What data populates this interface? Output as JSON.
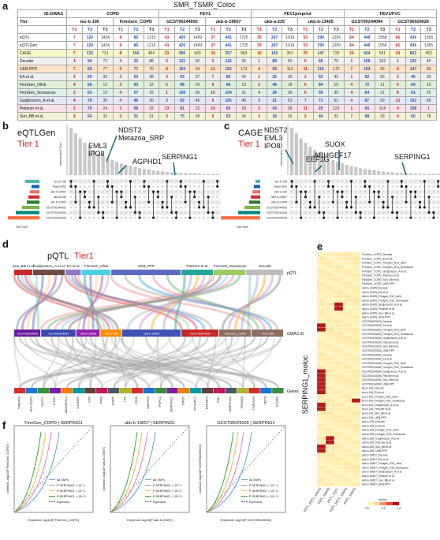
{
  "panel_a": {
    "letter": "a",
    "title": "SMR_TSMR_Coloc",
    "corner_id": "ID.GWAS",
    "corner_tier": "Tier",
    "groups": [
      "COPD",
      "FEV1",
      "FEV1prepred",
      "FEV1/FVC"
    ],
    "ids": [
      "ieu-b-106",
      "FinnGen_COPD",
      "GCST90244092",
      "ukb-b-19657",
      "ukb-a-235",
      "ukb-b-13405",
      "GCST90244094",
      "GCST90029026"
    ],
    "tiers": [
      "T1",
      "T2",
      "T3"
    ],
    "rows": [
      {
        "name": "eQTL",
        "values": [
          "7",
          "120",
          "1424",
          "8",
          "85",
          "1215",
          "43",
          "420",
          "1499",
          "37",
          "441",
          "1725",
          "35",
          "267",
          "1019",
          "53",
          "290",
          "1299",
          "94",
          "449",
          "1558",
          "66",
          "439",
          "1365"
        ]
      },
      {
        "name": "eQTLGen",
        "values": [
          "7",
          "129",
          "1424",
          "8",
          "85",
          "1215",
          "43",
          "420",
          "1499",
          "37",
          "441",
          "1725",
          "35",
          "267",
          "1019",
          "53",
          "290",
          "1299",
          "94",
          "449",
          "1558",
          "66",
          "439",
          "1365"
        ]
      },
      {
        "name": "CAGE",
        "values": [
          "7",
          "133",
          "731",
          "8",
          "150",
          "484",
          "33",
          "300",
          "683",
          "34",
          "357",
          "963",
          "16",
          "143",
          "352",
          "25",
          "147",
          "729",
          "34",
          "664",
          "591",
          "34",
          "602",
          "452"
        ]
      },
      {
        "name": "Decode",
        "values": [
          "1",
          "94",
          "72",
          "4",
          "32",
          "88",
          "5",
          "121",
          "90",
          "2",
          "118",
          "96",
          "1",
          "89",
          "50",
          "6",
          "65",
          "75",
          "1",
          "106",
          "102",
          "1",
          "130",
          "45"
        ]
      },
      {
        "name": "UKB-PPP",
        "values": [
          "7",
          "69",
          "77",
          "6",
          "77",
          "70",
          "8",
          "154",
          "94",
          "11",
          "162",
          "173",
          "4",
          "59",
          "113",
          "11",
          "116",
          "172",
          "7",
          "154",
          "96",
          "8",
          "147",
          "80"
        ]
      },
      {
        "name": "EA et al.",
        "values": [
          "3",
          "65",
          "32",
          "2",
          "53",
          "38",
          "3",
          "63",
          "37",
          "7",
          "96",
          "42",
          "1",
          "25",
          "36",
          "2",
          "52",
          "42",
          "1",
          "62",
          "55",
          "2",
          "46",
          "39"
        ]
      },
      {
        "name": "FinnGen_Olink",
        "values": [
          "4",
          "66",
          "12",
          "2",
          "93",
          "12",
          "5",
          "98",
          "20",
          "6",
          "98",
          "13",
          "2",
          "48",
          "18",
          "6",
          "84",
          "10",
          "4",
          "72",
          "11",
          "6",
          "69",
          "10"
        ]
      },
      {
        "name": "FinnGen_Somascan",
        "values": [
          "2",
          "63",
          "12",
          "4",
          "57",
          "15",
          "1",
          "100",
          "30",
          "10",
          "104",
          "31",
          "4",
          "28",
          "36",
          "6",
          "59",
          "35",
          "4",
          "64",
          "21",
          "8",
          "61",
          "25"
        ]
      },
      {
        "name": "Gudjonsson_A et al.",
        "values": [
          "4",
          "70",
          "35",
          "4",
          "46",
          "30",
          "3",
          "92",
          "46",
          "6",
          "105",
          "40",
          "3",
          "31",
          "53",
          "7",
          "71",
          "52",
          "4",
          "67",
          "59",
          "13",
          "102",
          "28"
        ]
      },
      {
        "name": "Pietzner et al.",
        "values": [
          "3",
          "70",
          "24",
          "1",
          "58",
          "32",
          "13",
          "81",
          "22",
          "14",
          "65",
          "18",
          "2",
          "43",
          "28",
          "11",
          "25",
          "123",
          "1",
          "65",
          "114",
          "4",
          "108",
          "1"
        ]
      },
      {
        "name": "Sun_BB et al.",
        "values": [
          "3",
          "54",
          "31",
          "2",
          "31",
          "21",
          "3",
          "75",
          "38",
          "5",
          "53",
          "34",
          "3",
          "18",
          "26",
          "2",
          "44",
          "22",
          "7",
          "68",
          "33",
          "4",
          "60",
          "78"
        ]
      }
    ],
    "row_colors": [
      "#ffffff",
      "#ffffff",
      "#f7f7c8",
      "#f0f0f0",
      "#fde4c8",
      "#eeeeee",
      "#dff0d8",
      "#dff0e8",
      "#e0e8f8",
      "#f8e0ea",
      "#f3f0d8"
    ]
  },
  "panel_b": {
    "letter": "b",
    "title": "eQTLGen",
    "tier": "Tier 1",
    "genes1": "NDST2",
    "genes2": "Metazoa_SRP",
    "genes3": "EML3",
    "genes4": "IPO8",
    "genes5": "AGPHD1",
    "genes6": "SERPING1",
    "ylabel": "Intersection Size",
    "xlabel": "Set Size",
    "sets": [
      "ieu-b-106",
      "FinnCOPD",
      "ukb-b-19657",
      "ukb-a-235",
      "ukb-b-13405",
      "GCST90244092",
      "GCST90244094",
      "GCST90029026"
    ],
    "setcolors": [
      "#4db6ac",
      "#1565c0",
      "#e57373",
      "#d32f2f",
      "#2e7d32",
      "#7cb342",
      "#00897b",
      "#ff7043"
    ]
  },
  "panel_c": {
    "letter": "c",
    "title": "CAGE",
    "tier": "Tier 1",
    "genes1": "NDST2",
    "genes2": "EML3",
    "genes3": "IPO8",
    "genes4": "EEF1G",
    "genes5": "SUOX",
    "genes6": "ARHGEF17",
    "genes7": "SERPING1",
    "ylabel": "Intersection Size",
    "xlabel": "Set Size",
    "sets": [
      "ieu-b-106",
      "FinnCOPD",
      "ukb-a-235",
      "ukb-b-19657",
      "ukb-b-13405",
      "GCST90244092",
      "GCST90244094",
      "GCST90029026"
    ]
  },
  "panel_d": {
    "letter": "d",
    "title": "pQTL",
    "tier": "Tier1",
    "top_labels": [
      "Sun_BB et al.",
      "Gudjonsson_A et al.",
      "EA et al.",
      "FinnGen_Olink",
      "UKB_PPP",
      "Pietzner et al.",
      "FinnGen_Somascan",
      "Decode"
    ],
    "top_colors": [
      "#c62828",
      "#6d4c41",
      "#8e7cc3",
      "#4dd0e1",
      "#5c6bc0",
      "#26a69a",
      "#9ccc65",
      "#bdbdbd"
    ],
    "mid_labels": [
      "GCST90029026",
      "GCST90244094",
      "ukb-b-13405",
      "ukb-a-235",
      "ukb-b-19657",
      "GCST90244092",
      "FinnGen_COPD",
      "ieu-b-106"
    ],
    "mid_colors": [
      "#6a1b9a",
      "#3949ab",
      "#8e24aa",
      "#fb8c00",
      "#3f51b5",
      "#c62828",
      "#8d6e63",
      "#8d6e63"
    ],
    "right_top": "pQTL",
    "right_mid": "GWAS.ID",
    "right_bot": "Genes",
    "genes": [
      "TMEM43",
      "HLA-DQA2",
      "NDST2",
      "IL1RN",
      "ADAMTSL1",
      "IL12RB2",
      "CA6",
      "PPIB",
      "AGER",
      "LTA",
      "ITIH5",
      "MAP2K5",
      "PSPC1",
      "SERPING1",
      "CRCP",
      "RTN4RL1",
      "EFEMP1",
      "NSE",
      "SERPINA1",
      "PRSS53",
      "TSPAN33",
      "MICB",
      "IL13RA"
    ]
  },
  "panel_e": {
    "letter": "e",
    "title": "SERPING1_moloc",
    "rows": [
      "FinnGen_COPD_Decode",
      "FinnGen_COPD_EA et al.",
      "FinnGen_COPD_Finngen_R10_olink",
      "FinnGen_COPD_Finngen_R10_Somascan",
      "FinnGen_COPD_Gudjonsson_A et al.",
      "FinnGen_COPD_Pietzner et al.",
      "FinnGen_COPD_Sun_BB et al.",
      "FinnGen_COPD_UKB-PPP",
      "ukb-b-13405_Decode",
      "ukb-b-13405_EA et al.",
      "ukb-b-13405_Finngen_R10_olink",
      "ukb-b-13405_Finngen_R10_Somascan",
      "ukb-b-13405_Gudjonsson_A et al.",
      "ukb-b-13405_Pietzner et al.",
      "ukb-b-13405_Sun_BB et al.",
      "ukb-b-13405_UKB-PPP",
      "GCST90029026_Decode",
      "GCST90029026_EA et al.",
      "GCST90029026_Finngen_R10_olink",
      "GCST90029026_Finngen_R10_Somascan",
      "GCST90029026_Gudjonsson_A et al.",
      "GCST90029026_Pietzner et al.",
      "GCST90029026_Sun_BB et al.",
      "GCST90029026_UKB-PPP",
      "GCST90244094_Decode",
      "GCST90244094_EA et al.",
      "GCST90244094_Finngen_R10_olink",
      "GCST90244094_Finngen_R10_Somascan",
      "GCST90244094_Gudjonsson_A et al.",
      "GCST90244094_Pietzner et al.",
      "GCST90244094_Sun_BB et al.",
      "GCST90244094_UKB-PPP",
      "ieu-b-106_Decode",
      "ieu-b-106_EA et al.",
      "ieu-b-106_Finngen_R10_olink",
      "ieu-b-106_Finngen_R10_Somascan",
      "ieu-b-106_Gudjonsson_A et al.",
      "ieu-b-106_Pietzner et al.",
      "ieu-b-106_Sun_BB et al.",
      "ieu-b-106_UKB-PPP",
      "ukb-a-235_Decode",
      "ukb-a-235_EA et al.",
      "ukb-a-235_Finngen_R10_olink",
      "ukb-a-235_Finngen_R10_Somascan",
      "ukb-a-235_Gudjonsson_A et al.",
      "ukb-a-235_Pietzner et al.",
      "ukb-a-235_Sun_BB et al.",
      "ukb-a-235_UKB-PPP",
      "ukb-b-19657_Decode",
      "ukb-b-19657_EA et al.",
      "ukb-b-19657_Finngen_R10_olink",
      "ukb-b-19657_Finngen_R10_Somascan",
      "ukb-b-19657_Gudjonsson_A et al.",
      "ukb-b-19657_Pietzner et al.",
      "ukb-b-19657_Sun_BB et al.",
      "ukb-b-19657_UKB-PPP"
    ],
    "cols": [
      "eQTL_pQTL_GWAS",
      "eQTL_GWAS",
      "pQTL_eQTL",
      "eQTL_pQTL_GWAS",
      "pQTL_GWAS"
    ],
    "legend_title": "moloc",
    "legend_ticks": [
      "0.0",
      "0.5",
      "1.0"
    ]
  },
  "panel_f": {
    "letter": "f",
    "plots": [
      {
        "title": "FinnGen_COPD | SERPING1",
        "ylabel": "Nominal -log10(P FinnGen_COPD)",
        "xlabel": "Empirical -log10(P FinnGen_COPD)",
        "legend": [
          "All SNPs",
          "P SERPING1 < 10^-1",
          "P SERPING1 < 10^-2",
          "P SERPING1 < 10^-3",
          "Expected"
        ]
      },
      {
        "title": "ukb-b-19657 | SERPING1",
        "ylabel": "Nominal -log10(P ukb-b-19657)",
        "xlabel": "Empirical -log10(P ukb-b-19657)",
        "legend": [
          "All SNPs",
          "P SERPING1 < 10^-1",
          "P SERPING1 < 10^-2",
          "P SERPING1 < 10^-3",
          "Expected"
        ]
      },
      {
        "title": "GCST90029026 | SERPING1",
        "ylabel": "Nominal -log10(P GCST90029026)",
        "xlabel": "Empirical -log10(P GCST90029026)",
        "legend": [
          "All SNPs",
          "P SERPING1 < 10^-1",
          "P SERPING1 < 10^-2",
          "P SERPING1 < 10^-3",
          "Expected"
        ]
      }
    ]
  }
}
